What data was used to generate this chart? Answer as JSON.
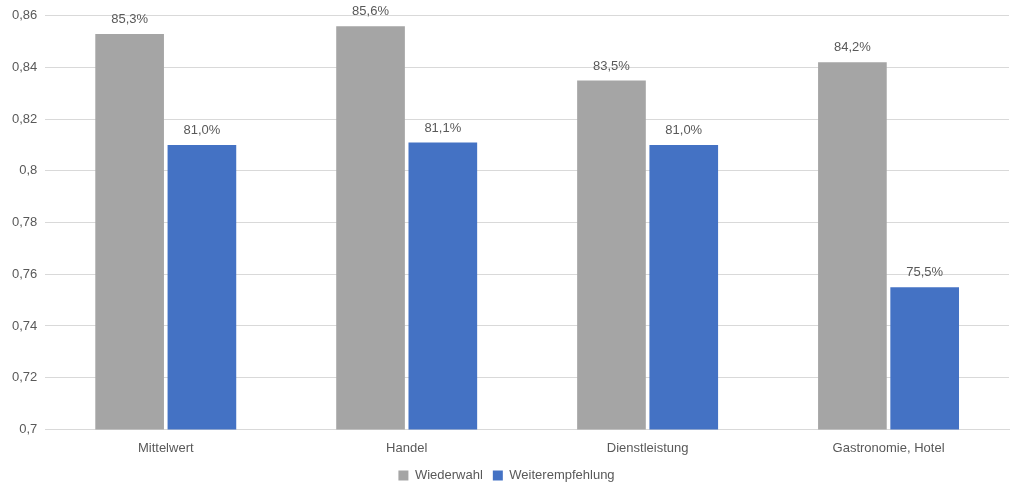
{
  "chart_data": {
    "type": "bar",
    "categories": [
      "Mittelwert",
      "Handel",
      "Dienstleistung",
      "Gastronomie, Hotel"
    ],
    "series": [
      {
        "name": "Wiederwahl",
        "color": "#a5a5a5",
        "values": [
          0.853,
          0.856,
          0.835,
          0.842
        ],
        "value_labels": [
          "85,3%",
          "85,6%",
          "83,5%",
          "84,2%"
        ]
      },
      {
        "name": "Weiterempfehlung",
        "color": "#4472c4",
        "values": [
          0.81,
          0.811,
          0.81,
          0.755
        ],
        "value_labels": [
          "81,0%",
          "81,1%",
          "81,0%",
          "75,5%"
        ]
      }
    ],
    "ylim": [
      0.7,
      0.86
    ],
    "yticks": [
      {
        "value": 0.7,
        "label": "0,7"
      },
      {
        "value": 0.72,
        "label": "0,72"
      },
      {
        "value": 0.74,
        "label": "0,74"
      },
      {
        "value": 0.76,
        "label": "0,76"
      },
      {
        "value": 0.78,
        "label": "0,78"
      },
      {
        "value": 0.8,
        "label": "0,8"
      },
      {
        "value": 0.82,
        "label": "0,82"
      },
      {
        "value": 0.84,
        "label": "0,84"
      },
      {
        "value": 0.86,
        "label": "0,86"
      }
    ],
    "grid": "y",
    "legend": "bottom"
  }
}
